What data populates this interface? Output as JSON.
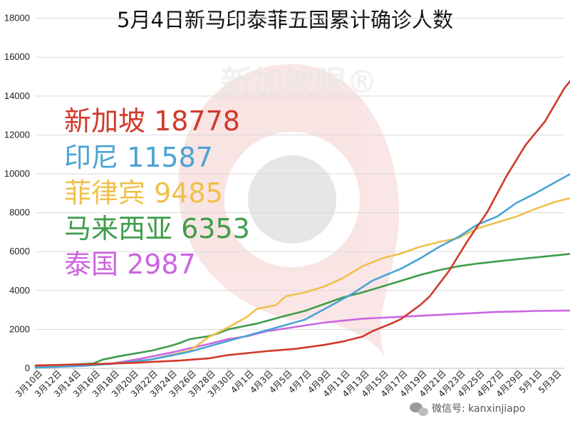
{
  "chart_data": {
    "type": "line",
    "title": "5月4日新马印泰菲五国累计确诊人数",
    "ylim": [
      0,
      18500
    ],
    "yticks": [
      0,
      2000,
      4000,
      6000,
      8000,
      10000,
      12000,
      14000,
      16000,
      18000
    ],
    "xtick_labels": [
      "3月10日",
      "3月12日",
      "3月14日",
      "3月16日",
      "3月18日",
      "3月20日",
      "3月22日",
      "3月24日",
      "3月26日",
      "3月28日",
      "3月30日",
      "4月1日",
      "4月3日",
      "4月5日",
      "4月7日",
      "4月9日",
      "4月11日",
      "4月13日",
      "4月15日",
      "4月17日",
      "4月19日",
      "4月21日",
      "4月23日",
      "4月25日",
      "4月27日",
      "4月29日",
      "5月1日",
      "5月3日"
    ],
    "x_start": "3月10日",
    "x_end": "5月4日",
    "grid": true,
    "series": [
      {
        "name": "新加坡",
        "color": "#d0392b",
        "label": "新加坡 18778",
        "points": [
          [
            0,
            150
          ],
          [
            5,
            200
          ],
          [
            10,
            280
          ],
          [
            15,
            400
          ],
          [
            18,
            510
          ],
          [
            20,
            680
          ],
          [
            24,
            880
          ],
          [
            27,
            1000
          ],
          [
            30,
            1200
          ],
          [
            32,
            1380
          ],
          [
            34,
            1630
          ],
          [
            35,
            1900
          ],
          [
            37,
            2300
          ],
          [
            38,
            2530
          ],
          [
            40,
            3250
          ],
          [
            41,
            3700
          ],
          [
            43,
            5000
          ],
          [
            45,
            6600
          ],
          [
            47,
            8050
          ],
          [
            49,
            9900
          ],
          [
            51,
            11500
          ],
          [
            52,
            12100
          ],
          [
            53,
            12700
          ],
          [
            55,
            14400
          ],
          [
            57,
            15600
          ],
          [
            59,
            16600
          ],
          [
            60,
            17100
          ],
          [
            61,
            17500
          ],
          [
            62,
            18200
          ],
          [
            63,
            18778
          ]
        ]
      },
      {
        "name": "印尼",
        "color": "#4aa3d5",
        "label": "印尼 11587",
        "points": [
          [
            0,
            30
          ],
          [
            5,
            130
          ],
          [
            8,
            230
          ],
          [
            12,
            450
          ],
          [
            16,
            850
          ],
          [
            20,
            1400
          ],
          [
            24,
            1950
          ],
          [
            28,
            2500
          ],
          [
            31,
            3300
          ],
          [
            33,
            3850
          ],
          [
            35,
            4500
          ],
          [
            38,
            5120
          ],
          [
            40,
            5650
          ],
          [
            42,
            6250
          ],
          [
            44,
            6760
          ],
          [
            46,
            7400
          ],
          [
            48,
            7800
          ],
          [
            50,
            8500
          ],
          [
            52,
            9000
          ],
          [
            54,
            9550
          ],
          [
            56,
            10100
          ],
          [
            58,
            10700
          ],
          [
            60,
            11200
          ],
          [
            62,
            11587
          ]
        ]
      },
      {
        "name": "菲律宾",
        "color": "#f0c04a",
        "label": "菲律宾 9485",
        "points": [
          [
            0,
            30
          ],
          [
            5,
            150
          ],
          [
            9,
            270
          ],
          [
            12,
            450
          ],
          [
            16,
            900
          ],
          [
            18,
            1600
          ],
          [
            20,
            2100
          ],
          [
            22,
            2650
          ],
          [
            23,
            3050
          ],
          [
            25,
            3250
          ],
          [
            26,
            3700
          ],
          [
            28,
            3900
          ],
          [
            30,
            4200
          ],
          [
            32,
            4650
          ],
          [
            34,
            5250
          ],
          [
            36,
            5650
          ],
          [
            38,
            5900
          ],
          [
            40,
            6250
          ],
          [
            42,
            6500
          ],
          [
            44,
            6700
          ],
          [
            46,
            7200
          ],
          [
            48,
            7500
          ],
          [
            50,
            7800
          ],
          [
            52,
            8200
          ],
          [
            54,
            8550
          ],
          [
            56,
            8800
          ],
          [
            58,
            9200
          ],
          [
            60,
            9485
          ]
        ]
      },
      {
        "name": "马来西亚",
        "color": "#3e9d4a",
        "label": "马来西亚 6353",
        "points": [
          [
            0,
            130
          ],
          [
            4,
            200
          ],
          [
            6,
            250
          ],
          [
            7,
            450
          ],
          [
            9,
            650
          ],
          [
            12,
            900
          ],
          [
            14,
            1150
          ],
          [
            15,
            1300
          ],
          [
            16,
            1500
          ],
          [
            18,
            1650
          ],
          [
            19,
            1800
          ],
          [
            20,
            2000
          ],
          [
            23,
            2300
          ],
          [
            26,
            2700
          ],
          [
            28,
            2950
          ],
          [
            30,
            3300
          ],
          [
            32,
            3650
          ],
          [
            34,
            3900
          ],
          [
            36,
            4200
          ],
          [
            38,
            4500
          ],
          [
            40,
            4800
          ],
          [
            42,
            5050
          ],
          [
            44,
            5250
          ],
          [
            46,
            5390
          ],
          [
            48,
            5500
          ],
          [
            50,
            5600
          ],
          [
            52,
            5700
          ],
          [
            54,
            5800
          ],
          [
            56,
            5900
          ],
          [
            58,
            6000
          ],
          [
            60,
            6100
          ],
          [
            62,
            6353
          ]
        ]
      },
      {
        "name": "泰国",
        "color": "#cc66e0",
        "label": "泰国 2987",
        "points": [
          [
            0,
            50
          ],
          [
            4,
            110
          ],
          [
            8,
            250
          ],
          [
            11,
            500
          ],
          [
            14,
            800
          ],
          [
            18,
            1250
          ],
          [
            20,
            1500
          ],
          [
            22,
            1650
          ],
          [
            24,
            1900
          ],
          [
            26,
            2050
          ],
          [
            28,
            2200
          ],
          [
            30,
            2350
          ],
          [
            32,
            2450
          ],
          [
            34,
            2550
          ],
          [
            36,
            2600
          ],
          [
            38,
            2650
          ],
          [
            40,
            2700
          ],
          [
            42,
            2750
          ],
          [
            44,
            2800
          ],
          [
            46,
            2850
          ],
          [
            48,
            2900
          ],
          [
            50,
            2920
          ],
          [
            52,
            2950
          ],
          [
            54,
            2960
          ],
          [
            56,
            2970
          ],
          [
            58,
            2987
          ]
        ]
      }
    ]
  },
  "watermark": {
    "text": "新加坡眼®",
    "color": "#d83a3a"
  },
  "footer": {
    "text": "微信号: kanxinjiapo"
  }
}
